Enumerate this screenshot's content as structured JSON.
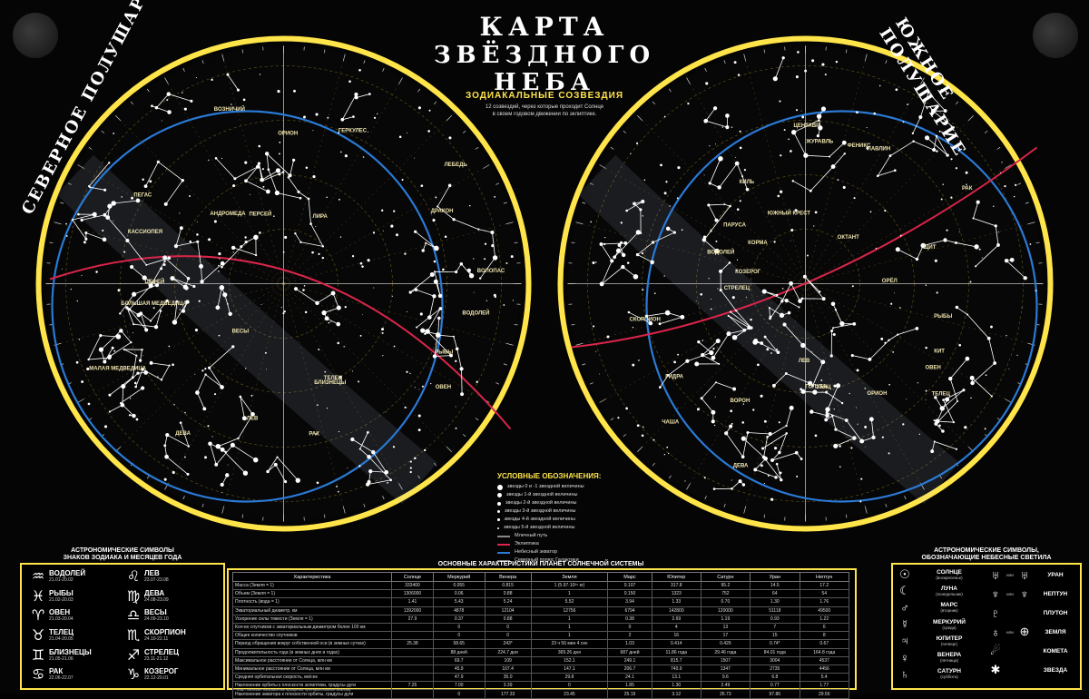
{
  "header": {
    "title_line1": "КАРТА",
    "title_line2": "ЗВЁЗДНОГО НЕБА"
  },
  "hemispheres": {
    "north": "СЕВЕРНОЕ ПОЛУШАРИЕ",
    "south": "ЮЖНОЕ ПОЛУШАРИЕ"
  },
  "zodiacal": {
    "title": "ЗОДИАКАЛЬНЫЕ СОЗВЕЗДИЯ",
    "text_line1": "12 созвездий, через которые проходит Солнце",
    "text_line2": "в своем годовом движении по эклиптике."
  },
  "legend": {
    "title": "УСЛОВНЫЕ ОБОЗНАЧЕНИЯ:",
    "items": [
      "звезды 0 и -1 звездной величины",
      "звезды 1-й звездной величины",
      "звезды 2-й звездной величины",
      "звезды 3-й звездной величины",
      "звезды 4-й звездной величины",
      "звезды 5-й звездной величины",
      "Млечный путь",
      "Эклиптика",
      "Небесный экватор",
      "Северный полюс Галактики"
    ],
    "line_colors": [
      "#d9254a",
      "#2a7ad6"
    ]
  },
  "north_map": {
    "constellations": [
      "ВОДОЛЕЙ",
      "РЫБЫ",
      "ОВЕН",
      "ТЕЛЕЦ",
      "БЛИЗНЕЦЫ",
      "РАК",
      "ЛЕВ",
      "ДЕВА",
      "ВЕСЫ",
      "МАЛАЯ МЕДВЕДИЦА",
      "БОЛЬШАЯ МЕДВЕДИЦА",
      "ЦЕФЕЙ",
      "КАССИОПЕЯ",
      "ПЕГАС",
      "АНДРОМЕДА",
      "ПЕРСЕЙ",
      "ВОЗНИЧИЙ",
      "ОРИОН",
      "ГЕРКУЛЕС",
      "ЛИРА",
      "ЛЕБЕДЬ",
      "ДРАКОН",
      "ВОЛОПАС"
    ]
  },
  "south_map": {
    "constellations": [
      "РЫБЫ",
      "КИТ",
      "ОВЕН",
      "ТЕЛЕЦ",
      "ОРИОН",
      "ЗАЯЦ",
      "ГОЛУБЬ",
      "ЛЕВ",
      "ДЕВА",
      "ВОРОН",
      "ЧАША",
      "ГИДРА",
      "СКОРПИОН",
      "СТРЕЛЕЦ",
      "КОЗЕРОГ",
      "ВОДОЛЕЙ",
      "КОРМА",
      "ПАРУСА",
      "КИЛЬ",
      "ЮЖНЫЙ КРЕСТ",
      "ЦЕНТАВР",
      "ЖУРАВЛЬ",
      "ФЕНИКС",
      "ПАВЛИН",
      "ОКТАНТ",
      "РАК",
      "ЩИТ",
      "ОРЁЛ"
    ]
  },
  "astro_symbols": {
    "title_line1": "АСТРОНОМИЧЕСКИЕ СИМВОЛЫ",
    "title_line2": "ЗНАКОВ ЗОДИАКА И МЕСЯЦЕВ ГОДА",
    "signs": [
      {
        "sym": "♒",
        "name": "ВОДОЛЕЙ",
        "dates": "21.01-20.02"
      },
      {
        "sym": "♌",
        "name": "ЛЕВ",
        "dates": "23.07-23.08"
      },
      {
        "sym": "♓",
        "name": "РЫБЫ",
        "dates": "21.02-20.03"
      },
      {
        "sym": "♍",
        "name": "ДЕВА",
        "dates": "24.08-23.09"
      },
      {
        "sym": "♈",
        "name": "ОВЕН",
        "dates": "21.03-20.04"
      },
      {
        "sym": "♎",
        "name": "ВЕСЫ",
        "dates": "24.09-23.10"
      },
      {
        "sym": "♉",
        "name": "ТЕЛЕЦ",
        "dates": "21.04-20.05"
      },
      {
        "sym": "♏",
        "name": "СКОРПИОН",
        "dates": "24.10-22.11"
      },
      {
        "sym": "♊",
        "name": "БЛИЗНЕЦЫ",
        "dates": "21.05-21.06"
      },
      {
        "sym": "♐",
        "name": "СТРЕЛЕЦ",
        "dates": "23.11-21.12"
      },
      {
        "sym": "♋",
        "name": "РАК",
        "dates": "22.06-22.07"
      },
      {
        "sym": "♑",
        "name": "КОЗЕРОГ",
        "dates": "22.12-20.01"
      }
    ]
  },
  "planet_table": {
    "title": "ОСНОВНЫЕ ХАРАКТЕРИСТИКИ ПЛАНЕТ СОЛНЕЧНОЙ СИСТЕМЫ",
    "headers": [
      "Характеристика",
      "Солнце",
      "Меркурий",
      "Венера",
      "Земля",
      "Марс",
      "Юпитер",
      "Сатурн",
      "Уран",
      "Нептун"
    ],
    "rows": [
      [
        "Масса (Земля = 1)",
        "333400",
        "0.055",
        "0.815",
        "1 (5.97·10²⁴ кг)",
        "0.107",
        "317.8",
        "95.2",
        "14.5",
        "17.2"
      ],
      [
        "Объем (Земля = 1)",
        "1306000",
        "0.06",
        "0.88",
        "1",
        "0.150",
        "1323",
        "752",
        "64",
        "54"
      ],
      [
        "Плотность (вода = 1)",
        "1.41",
        "5.43",
        "5.24",
        "5.52",
        "3.94",
        "1.33",
        "0.70",
        "1.30",
        "1.76"
      ],
      [
        "Экваториальный диаметр, км",
        "1392000",
        "4878",
        "12104",
        "12756",
        "6794",
        "142800",
        "120000",
        "51118",
        "49500"
      ],
      [
        "Ускорение силы тяжести (Земля = 1)",
        "27.9",
        "0.37",
        "0.88",
        "1",
        "0.38",
        "2.69",
        "1.19",
        "0.93",
        "1.22"
      ],
      [
        "Кол-во спутников с экваториальным диаметром более 100 км",
        "",
        "0",
        "0",
        "1",
        "0",
        "4",
        "13",
        "7",
        "6"
      ],
      [
        "Общее количество спутников",
        "",
        "0",
        "0",
        "1",
        "2",
        "16",
        "17",
        "15",
        "8"
      ],
      [
        "Период обращения вокруг собственной оси (в земных сутках)",
        "25.38",
        "58.65",
        "243*",
        "23 ч 56 мин 4 сек",
        "1.03",
        "0.414",
        "0.426",
        "0.74*",
        "0.67"
      ],
      [
        "Продолжительность года (в земных днях и годах)",
        "",
        "88 дней",
        "224.7 дня",
        "365.26 дня",
        "687 дней",
        "11.86 года",
        "29.46 года",
        "84.01 года",
        "164.8 года"
      ],
      [
        "Максимальное расстояние от Солнца, млн км",
        "",
        "69.7",
        "109",
        "152.1",
        "249.1",
        "815.7",
        "1507",
        "3004",
        "4537"
      ],
      [
        "Минимальное расстояние от Солнца, млн км",
        "",
        "45.9",
        "107.4",
        "147.1",
        "206.7",
        "740.9",
        "1347",
        "2735",
        "4456"
      ],
      [
        "Средняя орбитальная скорость, км/сек",
        "",
        "47.9",
        "35.0",
        "29.8",
        "24.1",
        "13.1",
        "9.6",
        "6.8",
        "5.4"
      ],
      [
        "Наклонение орбиты к плоскости эклиптики, градусы дуги",
        "7.25",
        "7.00",
        "3.39",
        "0",
        "1.85",
        "1.30",
        "2.49",
        "0.77",
        "1.77"
      ],
      [
        "Наклонение экватора к плоскости орбиты, градусы дуги",
        "",
        "0",
        "177.33",
        "23.45",
        "25.19",
        "3.12",
        "26.73",
        "97.86",
        "29.56"
      ]
    ],
    "footnote": "* знак - означает направление вращения, противоположное земному"
  },
  "sky_symbols": {
    "title_line1": "АСТРОНОМИЧЕСКИЕ СИМВОЛЫ,",
    "title_line2": "ОБОЗНАЧАЮЩИЕ НЕБЕСНЫЕ СВЕТИЛА",
    "left": [
      {
        "sym": "☉",
        "name": "СОЛНЦЕ",
        "note": "(воскресенье)"
      },
      {
        "sym": "☾",
        "name": "ЛУНА",
        "note": "(понедельник)"
      },
      {
        "sym": "♂",
        "name": "МАРС",
        "note": "(вторник)"
      },
      {
        "sym": "☿",
        "name": "МЕРКУРИЙ",
        "note": "(среда)"
      },
      {
        "sym": "♃",
        "name": "ЮПИТЕР",
        "note": "(четверг)"
      },
      {
        "sym": "♀",
        "name": "ВЕНЕРА",
        "note": "(пятница)"
      },
      {
        "sym": "♄",
        "name": "САТУРН",
        "note": "(суббота)"
      }
    ],
    "right": [
      {
        "sym1": "♅",
        "sym2": "♅",
        "name": "УРАН"
      },
      {
        "sym1": "♆",
        "sym2": "♆",
        "name": "НЕПТУН"
      },
      {
        "sym1": "♇",
        "sym2": "",
        "name": "ПЛУТОН"
      },
      {
        "sym1": "♁",
        "sym2": "⊕",
        "name": "ЗЕМЛЯ"
      },
      {
        "sym1": "☄",
        "sym2": "",
        "name": "КОМЕТА"
      },
      {
        "sym1": "✱",
        "sym2": "",
        "name": "ЗВЕЗДА"
      }
    ],
    "or_word": "или"
  },
  "colors": {
    "frame": "#ffe44a",
    "const_line": "#ffffff",
    "blue": "#2a7ad6",
    "red": "#d9254a",
    "sky": "#070707"
  }
}
